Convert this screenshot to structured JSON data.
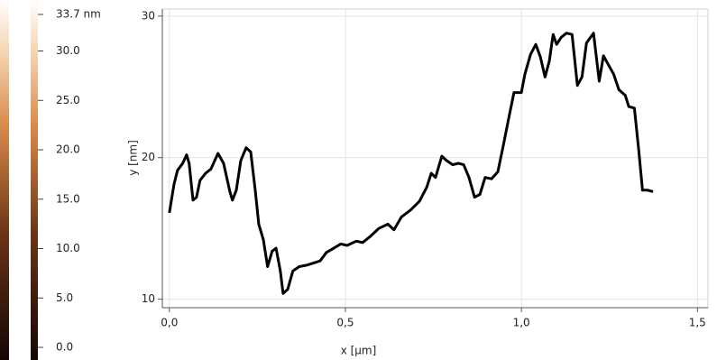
{
  "chart_data": [
    {
      "type": "colorbar",
      "ylim": [
        0,
        33.7
      ],
      "yticks": [
        {
          "value": 33.7,
          "label": "33.7 nm"
        },
        {
          "value": 30,
          "label": "30.0"
        },
        {
          "value": 25,
          "label": "25.0"
        },
        {
          "value": 20,
          "label": "20.0"
        },
        {
          "value": 15,
          "label": "15.0"
        },
        {
          "value": 10,
          "label": "10.0"
        },
        {
          "value": 5,
          "label": "5.0"
        },
        {
          "value": 0,
          "label": "0.0"
        }
      ]
    },
    {
      "type": "line",
      "x_label": "x [µm]",
      "y_label": "y [nm]",
      "xlim": [
        -0.02,
        1.53
      ],
      "ylim": [
        9.4,
        30.5
      ],
      "xticks": [
        {
          "value": 0,
          "label": "0,0"
        },
        {
          "value": 0.5,
          "label": "0,5"
        },
        {
          "value": 1,
          "label": "1,0"
        },
        {
          "value": 1.5,
          "label": "1,5"
        }
      ],
      "yticks": [
        10,
        20,
        30
      ],
      "grid": true,
      "series": [
        {
          "color": "#000000",
          "x": [
            0.0,
            0.013,
            0.023,
            0.038,
            0.049,
            0.056,
            0.067,
            0.077,
            0.087,
            0.103,
            0.118,
            0.138,
            0.154,
            0.172,
            0.179,
            0.19,
            0.203,
            0.218,
            0.231,
            0.244,
            0.254,
            0.267,
            0.279,
            0.292,
            0.303,
            0.315,
            0.323,
            0.336,
            0.351,
            0.369,
            0.39,
            0.415,
            0.428,
            0.446,
            0.467,
            0.487,
            0.505,
            0.531,
            0.549,
            0.569,
            0.595,
            0.621,
            0.638,
            0.659,
            0.685,
            0.71,
            0.731,
            0.744,
            0.756,
            0.774,
            0.787,
            0.805,
            0.821,
            0.836,
            0.851,
            0.867,
            0.882,
            0.897,
            0.915,
            0.933,
            0.949,
            0.964,
            0.979,
            1.0,
            1.01,
            1.026,
            1.041,
            1.054,
            1.067,
            1.079,
            1.09,
            1.1,
            1.113,
            1.128,
            1.144,
            1.159,
            1.172,
            1.185,
            1.205,
            1.221,
            1.233,
            1.244,
            1.262,
            1.277,
            1.295,
            1.305,
            1.321,
            1.333,
            1.344,
            1.359,
            1.374
          ],
          "values": [
            16.1,
            18.1,
            19.1,
            19.6,
            20.2,
            19.6,
            17.0,
            17.2,
            18.4,
            18.9,
            19.2,
            20.3,
            19.6,
            17.6,
            17.0,
            17.7,
            19.8,
            20.7,
            20.4,
            17.7,
            15.3,
            14.2,
            12.3,
            13.4,
            13.6,
            12.0,
            10.4,
            10.7,
            12.0,
            12.3,
            12.4,
            12.6,
            12.7,
            13.3,
            13.6,
            13.9,
            13.8,
            14.1,
            14.0,
            14.4,
            15.0,
            15.3,
            14.9,
            15.8,
            16.3,
            16.9,
            17.9,
            18.9,
            18.6,
            20.1,
            19.8,
            19.5,
            19.6,
            19.5,
            18.6,
            17.2,
            17.4,
            18.6,
            18.5,
            19.0,
            20.9,
            22.8,
            24.6,
            24.6,
            25.9,
            27.3,
            28.0,
            27.1,
            25.7,
            26.8,
            28.7,
            28.0,
            28.5,
            28.8,
            28.7,
            25.1,
            25.7,
            28.1,
            28.8,
            25.4,
            27.2,
            26.7,
            25.9,
            24.8,
            24.4,
            23.6,
            23.5,
            20.6,
            17.7,
            17.7,
            17.6
          ]
        }
      ]
    }
  ]
}
